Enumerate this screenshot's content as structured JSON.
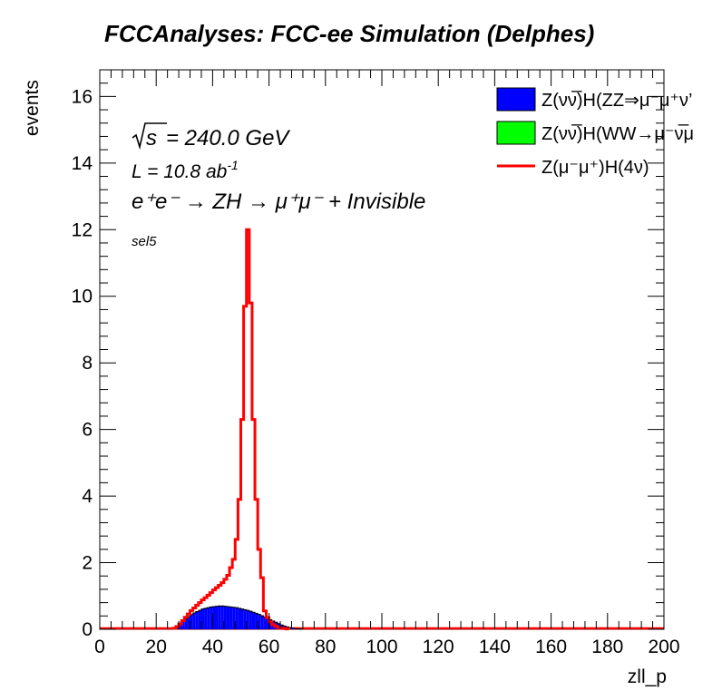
{
  "title": "FCCAnalyses: FCC-ee Simulation (Delphes)",
  "annotations": {
    "sqrt_s_label": "s",
    "energy": "= 240.0 GeV",
    "lumi": "L = 10.8 ab",
    "lumi_exp": "-1",
    "process": "e⁺e⁻ → ZH → μ⁺μ⁻ + Invisible",
    "selection": "sel5"
  },
  "colors": {
    "series_zz": "#0000ff",
    "series_ww": "#00ff00",
    "series_signal": "#ff0000",
    "axis": "#000000"
  },
  "chart_data": {
    "type": "histogram",
    "title": "FCCAnalyses: FCC-ee Simulation (Delphes)",
    "xlabel": "zll_p",
    "ylabel": "events",
    "xlim": [
      0,
      200
    ],
    "ylim": [
      0,
      16.8
    ],
    "xticks": [
      0,
      20,
      40,
      60,
      80,
      100,
      120,
      140,
      160,
      180,
      200
    ],
    "yticks": [
      0,
      2,
      4,
      6,
      8,
      10,
      12,
      14,
      16
    ],
    "bin_width": 1,
    "grid": false,
    "legend_position": "top-right",
    "series": [
      {
        "name": "Z(νν̅)H(ZZ⇒μ⁻μ⁺ν’",
        "style": "filled",
        "bin_start": 26,
        "values": [
          0.03,
          0.08,
          0.16,
          0.24,
          0.31,
          0.38,
          0.44,
          0.49,
          0.53,
          0.57,
          0.61,
          0.63,
          0.65,
          0.67,
          0.68,
          0.69,
          0.7,
          0.7,
          0.69,
          0.68,
          0.67,
          0.66,
          0.65,
          0.63,
          0.61,
          0.59,
          0.57,
          0.54,
          0.51,
          0.48,
          0.45,
          0.41,
          0.37,
          0.33,
          0.29,
          0.25,
          0.21,
          0.17,
          0.13,
          0.1,
          0.07,
          0.05,
          0.03,
          0.02,
          0.01,
          0.005
        ]
      },
      {
        "name": "Z(νν̅)H(WW→μ⁻ν̅μ",
        "style": "filled",
        "bin_start": 26,
        "values": []
      },
      {
        "name": "Z(μ⁻μ⁺)H(4ν)",
        "style": "line",
        "bin_start": 26,
        "values": [
          0.03,
          0.08,
          0.16,
          0.26,
          0.36,
          0.46,
          0.56,
          0.64,
          0.72,
          0.8,
          0.88,
          0.95,
          1.02,
          1.1,
          1.18,
          1.25,
          1.32,
          1.4,
          1.5,
          1.62,
          1.85,
          2.1,
          2.7,
          3.9,
          6.3,
          9.7,
          12.0,
          9.8,
          6.3,
          3.9,
          2.4,
          1.55,
          0.55,
          0.35,
          0.22,
          0.14,
          0.09,
          0.05,
          0.03,
          0.02,
          0.01
        ]
      }
    ]
  }
}
